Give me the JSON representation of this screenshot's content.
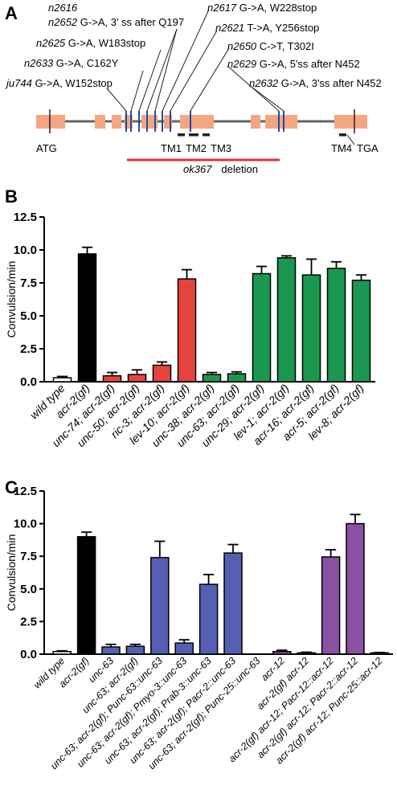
{
  "panel_a": {
    "letter": "A",
    "mutations": [
      {
        "allele": "n2616",
        "change": ""
      },
      {
        "allele": "n2652",
        "change": "G->A, 3' ss after Q197"
      },
      {
        "allele": "n2625",
        "change": "G->A, W183stop"
      },
      {
        "allele": "n2633",
        "change": "G->A, C162Y"
      },
      {
        "allele": "ju744",
        "change": "G->A, W152stop"
      },
      {
        "allele": "n2617",
        "change": "G->A, W228stop"
      },
      {
        "allele": "n2621",
        "change": "T->A, Y256stop"
      },
      {
        "allele": "n2650",
        "change": "C->T, T302I"
      },
      {
        "allele": "n2629",
        "change": "G->A, 5'ss after N452"
      },
      {
        "allele": "n2632",
        "change": "G->A, 3'ss after N452"
      }
    ],
    "labels": {
      "atg": "ATG",
      "tga": "TGA",
      "tm1": "TM1",
      "tm2": "TM2",
      "tm3": "TM3",
      "tm4": "TM4",
      "deletion_allele": "ok367",
      "deletion_word": "deletion"
    },
    "colors": {
      "exon": "#f4a582",
      "intron": "#666666",
      "mutation": "#1f4e9c",
      "deletion": "#e03030",
      "tm": "#222222"
    }
  },
  "chart_data": [
    {
      "panel": "B",
      "type": "bar",
      "ylabel": "Convulsion/min",
      "ylim": [
        0,
        12.5
      ],
      "yticks": [
        "0.0",
        "2.5",
        "5.0",
        "7.5",
        "10.0",
        "12.5"
      ],
      "categories": [
        "wild type",
        "acr-2(gf)",
        "unc-74; acr-2(gf)",
        "unc-50; acr-2(gf)",
        "ric-3; acr-2(gf)",
        "lev-10; acr-2(gf)",
        "unc-38; acr-2(gf)",
        "unc-63; acr-2(gf)",
        "unc-29; acr-2(gf)",
        "lev-1; acr-2(gf)",
        "acr-16; acr-2(gf)",
        "acr-5; acr-2(gf)",
        "lev-8; acr-2(gf)"
      ],
      "values": [
        0.3,
        9.7,
        0.45,
        0.55,
        1.25,
        7.8,
        0.55,
        0.6,
        8.2,
        9.4,
        8.1,
        8.6,
        7.7
      ],
      "errors": [
        0.1,
        0.5,
        0.25,
        0.35,
        0.25,
        0.7,
        0.15,
        0.15,
        0.55,
        0.15,
        1.2,
        0.5,
        0.4
      ],
      "colors": [
        "#ffffff",
        "#000000",
        "#e8423f",
        "#e8423f",
        "#e8423f",
        "#e8423f",
        "#1a9850",
        "#1a9850",
        "#1a9850",
        "#1a9850",
        "#1a9850",
        "#1a9850",
        "#1a9850"
      ]
    },
    {
      "panel": "C",
      "type": "bar",
      "ylabel": "Convulsion/min",
      "ylim": [
        0,
        12.5
      ],
      "yticks": [
        "0.0",
        "2.5",
        "5.0",
        "7.5",
        "10.0",
        "12.5"
      ],
      "categories": [
        "wild type",
        "acr-2(gf)",
        "unc-63",
        "unc-63; acr-2(gf)",
        "unc-63; acr-2(gf); Punc-63::unc-63",
        "unc-63; acr-2(gf); Pmyo-3::unc-63",
        "unc-63; acr-2(gf); Prab-3::unc-63",
        "unc-63; acr-2(gf); Pacr-2::unc-63",
        "unc-63; acr-2(gf); Punc-25::unc-63",
        "acr-12",
        "acr-2(gf) acr-12",
        "acr-2(gf) acr-12; Pacr-12::acr-12",
        "acr-2(gf) acr-12; Pacr-2::acr-12",
        "acr-2(gf) acr-12; Punc-25::acr-12"
      ],
      "values": [
        0.2,
        9.0,
        0.55,
        0.6,
        7.4,
        0.85,
        5.35,
        7.75,
        0.0,
        0.2,
        0.1,
        7.45,
        10.0,
        0.1
      ],
      "errors": [
        0.05,
        0.35,
        0.2,
        0.15,
        1.25,
        0.25,
        0.75,
        0.65,
        0.0,
        0.1,
        0.05,
        0.55,
        0.7,
        0.03
      ],
      "colors": [
        "#ffffff",
        "#000000",
        "#5560b4",
        "#5560b4",
        "#5560b4",
        "#5560b4",
        "#5560b4",
        "#5560b4",
        "#5560b4",
        "#8b4fa3",
        "#8b4fa3",
        "#8b4fa3",
        "#8b4fa3",
        "#8b4fa3"
      ]
    }
  ]
}
